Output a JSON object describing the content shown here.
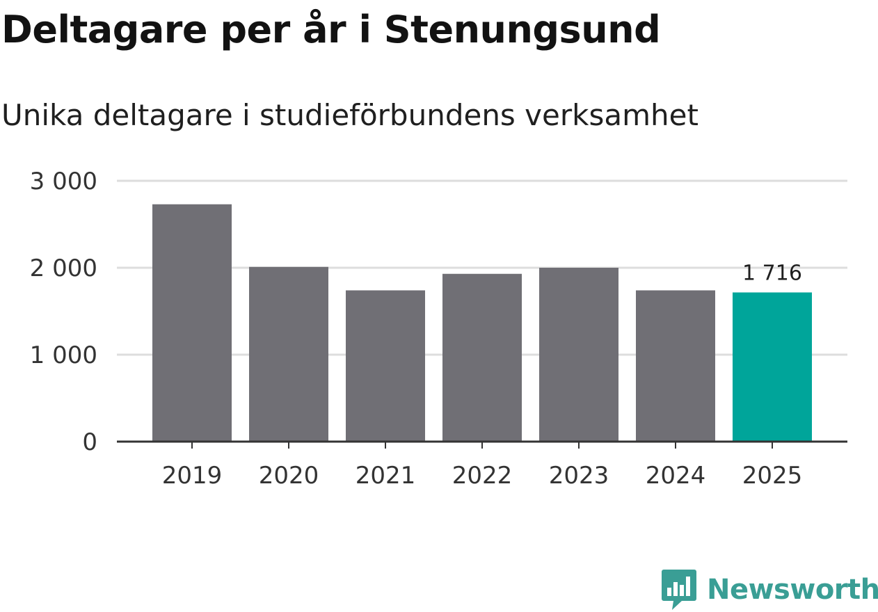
{
  "title": "Deltagare per år i Stenungsund",
  "subtitle": "Unika deltagare i studieförbundens verksamhet",
  "colors": {
    "bar": "#706f75",
    "highlight": "#00a59a",
    "grid": "#dddddd",
    "axis": "#333333",
    "logo": "#3a9e95"
  },
  "chart_data": {
    "type": "bar",
    "categories": [
      "2019",
      "2020",
      "2021",
      "2022",
      "2023",
      "2024",
      "2025"
    ],
    "values": [
      2730,
      2010,
      1740,
      1930,
      2000,
      1740,
      1716
    ],
    "highlight_index": 6,
    "data_labels": [
      {
        "index": 6,
        "text": "1 716"
      }
    ],
    "ylim": [
      0,
      3000
    ],
    "yticks": [
      {
        "value": 0,
        "label": "0"
      },
      {
        "value": 1000,
        "label": "1 000"
      },
      {
        "value": 2000,
        "label": "2 000"
      },
      {
        "value": 3000,
        "label": "3 000"
      }
    ],
    "grid": true,
    "xlabel": "",
    "ylabel": ""
  },
  "footer": {
    "logo_text": "Newsworthy",
    "logo_icon": "newsworthy-bar-chart-icon"
  }
}
